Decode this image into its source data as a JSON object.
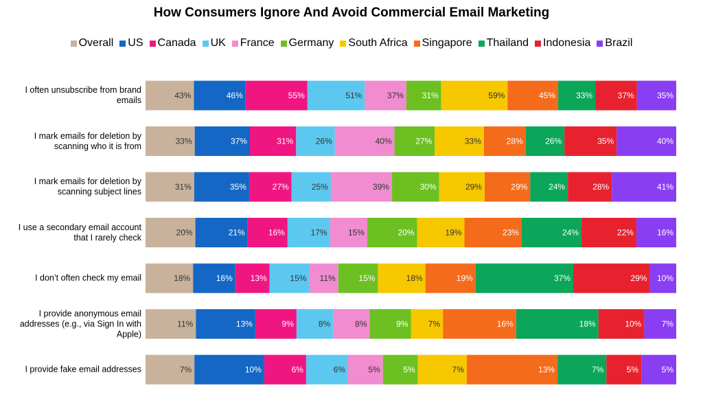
{
  "chart_data": {
    "type": "stacked_bar_horizontal",
    "title": "How Consumers Ignore And Avoid Commercial Email Marketing",
    "categories": [
      "I often unsubscribe from brand emails",
      "I mark emails for deletion by scanning who it is from",
      "I mark emails for deletion by scanning subject lines",
      "I use a secondary email account that I rarely check",
      "I don’t often check my email",
      "I provide anonymous email addresses (e.g., via Sign In with Apple)",
      "I provide fake email addresses"
    ],
    "series": [
      {
        "name": "Overall",
        "color": "#c9b29b",
        "values": [
          43,
          33,
          31,
          20,
          18,
          11,
          7
        ],
        "value_labels": [
          "43%",
          "33%",
          "31%",
          "20%",
          "18%",
          "11%",
          "7%"
        ]
      },
      {
        "name": "US",
        "color": "#1467c4",
        "values": [
          46,
          37,
          35,
          21,
          16,
          13,
          10
        ],
        "value_labels": [
          "46%",
          "37%",
          "35%",
          "21%",
          "16%",
          "13%",
          "10%"
        ]
      },
      {
        "name": "Canada",
        "color": "#f01682",
        "values": [
          55,
          31,
          27,
          16,
          13,
          9,
          6
        ],
        "value_labels": [
          "55%",
          "31%",
          "27%",
          "16%",
          "13%",
          "9%",
          "6%"
        ]
      },
      {
        "name": "UK",
        "color": "#5cc8f0",
        "values": [
          51,
          26,
          25,
          17,
          15,
          8,
          6
        ],
        "value_labels": [
          "51%",
          "26%",
          "25%",
          "17%",
          "15%",
          "8%",
          "6%"
        ]
      },
      {
        "name": "France",
        "color": "#f08ccf",
        "values": [
          37,
          40,
          39,
          15,
          11,
          8,
          5
        ],
        "value_labels": [
          "37%",
          "40%",
          "39%",
          "15%",
          "11%",
          "8%",
          "5%"
        ]
      },
      {
        "name": "Germany",
        "color": "#6cc022",
        "values": [
          31,
          27,
          30,
          20,
          15,
          9,
          5
        ],
        "value_labels": [
          "31%",
          "27%",
          "30%",
          "20%",
          "15%",
          "9%",
          "5%"
        ]
      },
      {
        "name": "South Africa",
        "color": "#f7c800",
        "values": [
          59,
          33,
          29,
          19,
          18,
          7,
          7
        ],
        "value_labels": [
          "59%",
          "33%",
          "29%",
          "19%",
          "18%",
          "7%",
          "7%"
        ]
      },
      {
        "name": "Singapore",
        "color": "#f56b1c",
        "values": [
          45,
          28,
          29,
          23,
          19,
          16,
          13
        ],
        "value_labels": [
          "45%",
          "28%",
          "29%",
          "23%",
          "19%",
          "16%",
          "13%"
        ]
      },
      {
        "name": "Thailand",
        "color": "#0ca65a",
        "values": [
          33,
          26,
          24,
          24,
          37,
          18,
          7
        ],
        "value_labels": [
          "33%",
          "26%",
          "24%",
          "24%",
          "37%",
          "18%",
          "7%"
        ]
      },
      {
        "name": "Indonesia",
        "color": "#e8212e",
        "values": [
          37,
          35,
          28,
          22,
          29,
          10,
          5
        ],
        "value_labels": [
          "37%",
          "35%",
          "28%",
          "22%",
          "29%",
          "10%",
          "5%"
        ]
      },
      {
        "name": "Brazil",
        "color": "#8a3ef2",
        "values": [
          35,
          40,
          41,
          16,
          10,
          7,
          5
        ],
        "value_labels": [
          "35%",
          "40%",
          "41%",
          "16%",
          "10%",
          "7%",
          "5%"
        ]
      }
    ]
  }
}
